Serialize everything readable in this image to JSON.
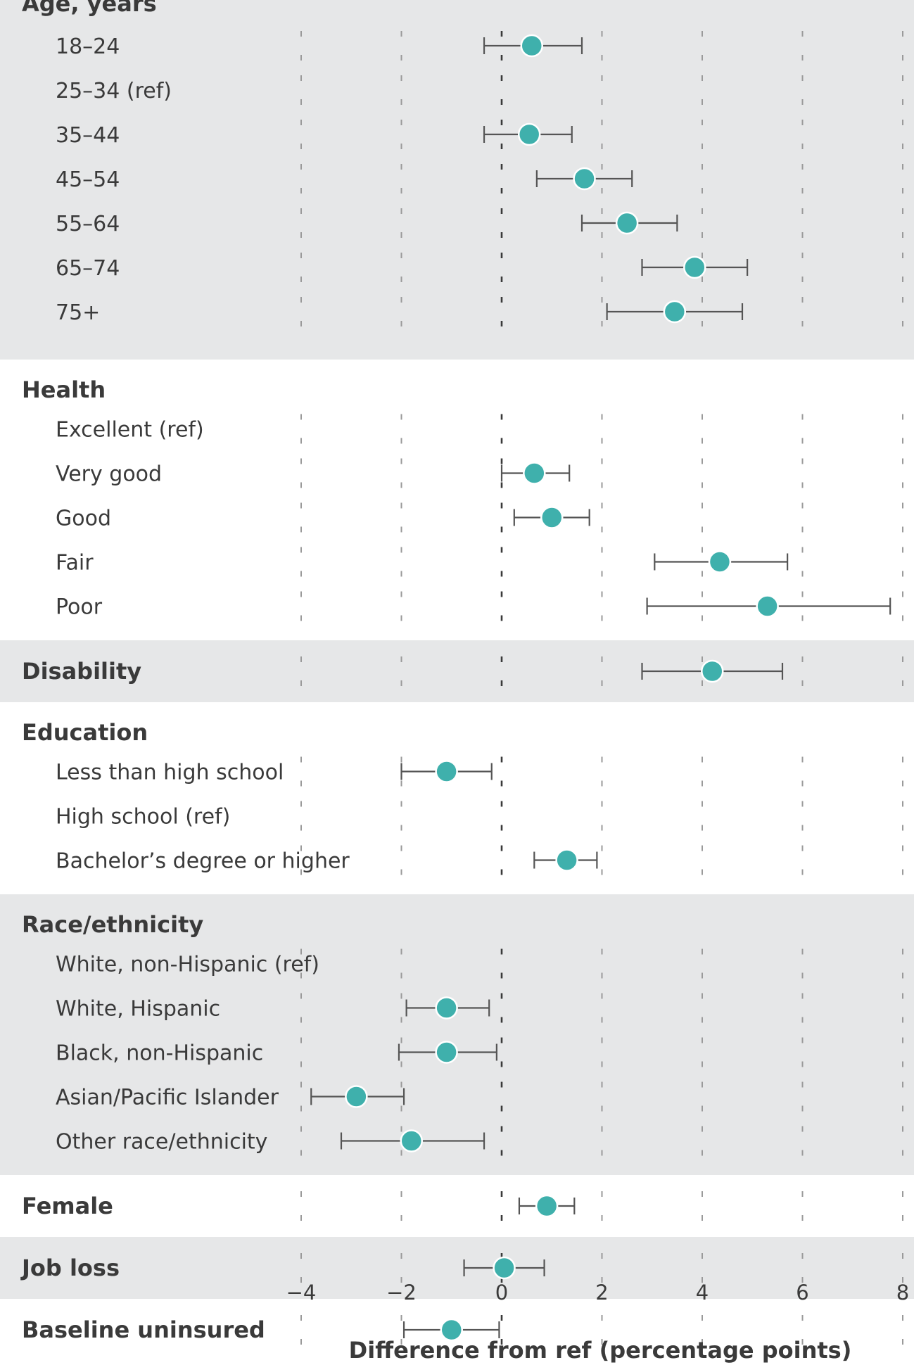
{
  "chart_data": {
    "type": "scatter",
    "subtype": "forest-plot",
    "xlabel": "Difference from ref (percentage points)",
    "xlim": [
      -4,
      8
    ],
    "xticks": [
      -4,
      -2,
      0,
      2,
      4,
      6,
      8
    ],
    "xtick_labels": [
      "−4",
      "−2",
      "0",
      "2",
      "4",
      "6",
      "8"
    ],
    "reference_line": 0,
    "colors": {
      "point": "#3fb0ac",
      "band": "#e6e7e8",
      "ci": "#555555",
      "text": "#3a3a3a"
    },
    "groups": [
      {
        "label": "Age, years",
        "shaded": true,
        "rows": [
          {
            "label": "18–24",
            "estimate": 0.6,
            "lower": -0.35,
            "upper": 1.6
          },
          {
            "label": "25–34 (ref)",
            "estimate": null,
            "lower": null,
            "upper": null
          },
          {
            "label": "35–44",
            "estimate": 0.55,
            "lower": -0.35,
            "upper": 1.4
          },
          {
            "label": "45–54",
            "estimate": 1.65,
            "lower": 0.7,
            "upper": 2.6
          },
          {
            "label": "55–64",
            "estimate": 2.5,
            "lower": 1.6,
            "upper": 3.5
          },
          {
            "label": "65–74",
            "estimate": 3.85,
            "lower": 2.8,
            "upper": 4.9
          },
          {
            "label": "75+",
            "estimate": 3.45,
            "lower": 2.1,
            "upper": 4.8
          }
        ]
      },
      {
        "label": "Health",
        "shaded": false,
        "rows": [
          {
            "label": "Excellent (ref)",
            "estimate": null,
            "lower": null,
            "upper": null
          },
          {
            "label": "Very good",
            "estimate": 0.65,
            "lower": 0.0,
            "upper": 1.35
          },
          {
            "label": "Good",
            "estimate": 1.0,
            "lower": 0.25,
            "upper": 1.75
          },
          {
            "label": "Fair",
            "estimate": 4.35,
            "lower": 3.05,
            "upper": 5.7
          },
          {
            "label": "Poor",
            "estimate": 5.3,
            "lower": 2.9,
            "upper": 7.75
          }
        ]
      },
      {
        "label": "Disability",
        "shaded": true,
        "estimate": 4.2,
        "lower": 2.8,
        "upper": 5.6,
        "rows": []
      },
      {
        "label": "Education",
        "shaded": false,
        "rows": [
          {
            "label": "Less than high school",
            "estimate": -1.1,
            "lower": -2.0,
            "upper": -0.2
          },
          {
            "label": "High school (ref)",
            "estimate": null,
            "lower": null,
            "upper": null
          },
          {
            "label": "Bachelor’s degree or higher",
            "estimate": 1.3,
            "lower": 0.65,
            "upper": 1.9
          }
        ]
      },
      {
        "label": "Race/ethnicity",
        "shaded": true,
        "rows": [
          {
            "label": "White, non-Hispanic (ref)",
            "estimate": null,
            "lower": null,
            "upper": null
          },
          {
            "label": "White, Hispanic",
            "estimate": -1.1,
            "lower": -1.9,
            "upper": -0.25
          },
          {
            "label": "Black, non-Hispanic",
            "estimate": -1.1,
            "lower": -2.05,
            "upper": -0.1
          },
          {
            "label": "Asian/Pacific Islander",
            "estimate": -2.9,
            "lower": -3.8,
            "upper": -1.95
          },
          {
            "label": "Other race/ethnicity",
            "estimate": -1.8,
            "lower": -3.2,
            "upper": -0.35
          }
        ]
      },
      {
        "label": "Female",
        "shaded": false,
        "estimate": 0.9,
        "lower": 0.35,
        "upper": 1.45,
        "rows": []
      },
      {
        "label": "Job loss",
        "shaded": true,
        "estimate": 0.05,
        "lower": -0.75,
        "upper": 0.85,
        "rows": []
      },
      {
        "label": "Baseline uninsured",
        "shaded": false,
        "estimate": -1.0,
        "lower": -1.95,
        "upper": -0.05,
        "rows": []
      }
    ]
  }
}
